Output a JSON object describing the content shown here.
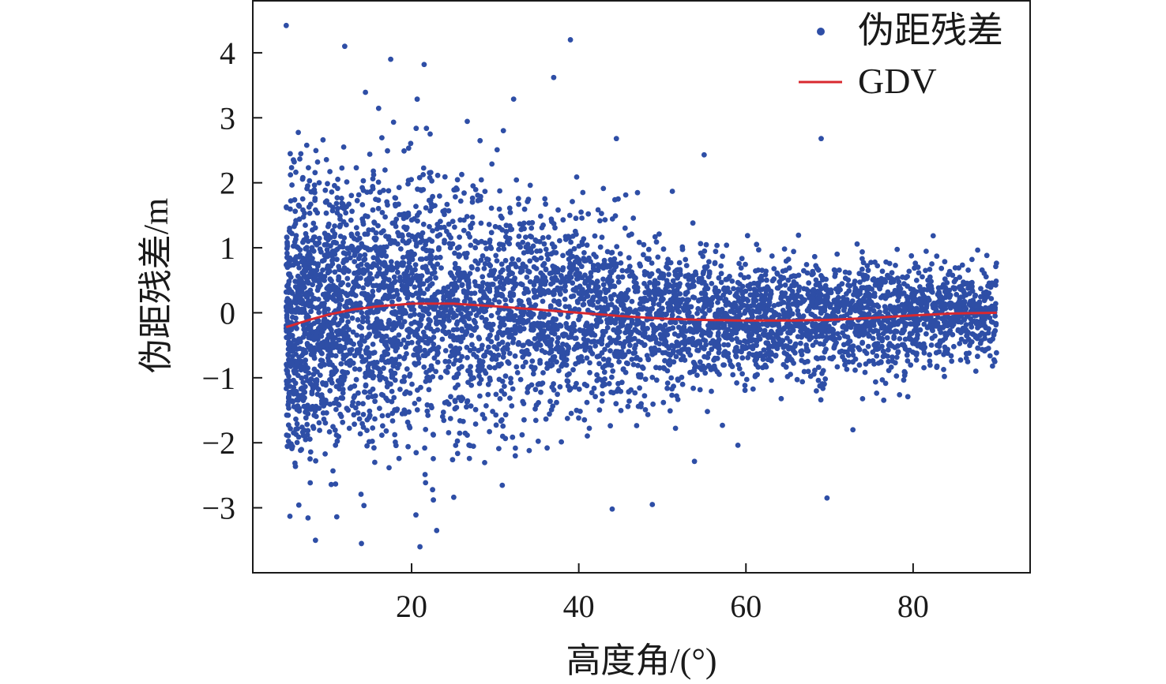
{
  "chart_data": {
    "type": "scatter",
    "title": "",
    "xlabel": "高度角/(°)",
    "ylabel": "伪距残差/m",
    "xlim": [
      1,
      94
    ],
    "ylim": [
      -4.0,
      4.8
    ],
    "x_ticks": [
      20,
      40,
      60,
      80
    ],
    "x_tick_labels": [
      "20",
      "40",
      "60",
      "80"
    ],
    "y_ticks": [
      -3,
      -2,
      -1,
      0,
      1,
      2,
      3,
      4
    ],
    "y_tick_labels": [
      "−3",
      "−2",
      "−1",
      "0",
      "1",
      "2",
      "3",
      "4"
    ],
    "grid": false,
    "legend": {
      "position": "top-right",
      "entries": [
        {
          "label": "伪距残差",
          "marker": "dot",
          "color": "#2e4ea6"
        },
        {
          "label": "GDV",
          "marker": "line",
          "color": "#d9282f"
        }
      ]
    },
    "series": [
      {
        "name": "伪距残差",
        "kind": "scatter",
        "color": "#2e4ea6",
        "x_range": [
          5,
          90
        ],
        "approx_count": 5500,
        "std_by_elevation": {
          "x": [
            5,
            20,
            30,
            40,
            50,
            60,
            70,
            80,
            90
          ],
          "std": [
            1.25,
            1.2,
            1.05,
            0.85,
            0.65,
            0.55,
            0.5,
            0.45,
            0.4
          ]
        },
        "notable_points": [
          [
            5,
            4.42
          ],
          [
            12,
            4.1
          ],
          [
            17.5,
            3.9
          ],
          [
            21.5,
            3.82
          ],
          [
            39,
            4.2
          ],
          [
            37,
            3.62
          ],
          [
            44.5,
            2.68
          ],
          [
            55,
            2.43
          ],
          [
            69,
            2.68
          ],
          [
            21,
            -3.6
          ],
          [
            14,
            -3.55
          ],
          [
            8.5,
            -3.5
          ],
          [
            23,
            -3.35
          ],
          [
            44,
            -3.02
          ],
          [
            48.8,
            -2.95
          ],
          [
            69.7,
            -2.85
          ],
          [
            72.8,
            -1.8
          ],
          [
            89.5,
            -0.82
          ]
        ]
      },
      {
        "name": "GDV",
        "kind": "line",
        "color": "#d9282f",
        "x": [
          5,
          8,
          10,
          13,
          16,
          20,
          25,
          30,
          35,
          40,
          45,
          50,
          55,
          60,
          65,
          70,
          75,
          80,
          85,
          90
        ],
        "y": [
          -0.22,
          -0.1,
          -0.03,
          0.05,
          0.1,
          0.14,
          0.14,
          0.1,
          0.05,
          0.0,
          -0.05,
          -0.09,
          -0.11,
          -0.12,
          -0.12,
          -0.11,
          -0.08,
          -0.04,
          -0.01,
          0.0
        ]
      }
    ]
  }
}
